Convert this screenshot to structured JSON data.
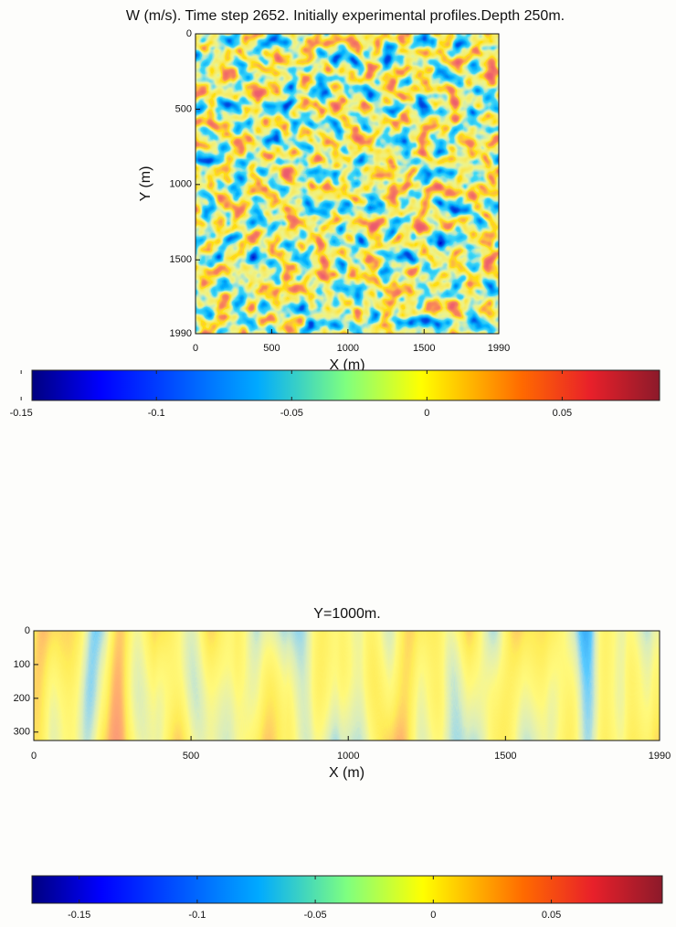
{
  "chart_data": [
    {
      "type": "heatmap",
      "title": "W (m/s). Time step 2652. Initially experimental profiles.Depth 250m.",
      "x_label": "X (m)",
      "y_label": "Y (m)",
      "xlim": [
        0,
        1990
      ],
      "xticks": [
        0,
        500,
        1000,
        1500,
        1990
      ],
      "ylim": [
        0,
        1990
      ],
      "yticks": [
        0,
        500,
        1000,
        1500,
        1990
      ],
      "y_reversed": true,
      "colormap": "jet",
      "colorbar": {
        "clim": [
          -0.146,
          0.086
        ],
        "ticks": [
          -0.15,
          -0.1,
          -0.05,
          0,
          0.05
        ]
      }
    },
    {
      "type": "heatmap",
      "title": "Y=1000m.",
      "x_label": "X (m)",
      "xlim": [
        0,
        1990
      ],
      "xticks": [
        0,
        500,
        1000,
        1500,
        1990
      ],
      "ylim": [
        0,
        325
      ],
      "yticks": [
        0,
        100,
        200,
        300
      ],
      "y_reversed": true,
      "colormap": "jet",
      "colorbar": {
        "clim": [
          -0.17,
          0.097
        ],
        "ticks": [
          -0.15,
          -0.1,
          -0.05,
          0,
          0.05
        ]
      }
    }
  ]
}
